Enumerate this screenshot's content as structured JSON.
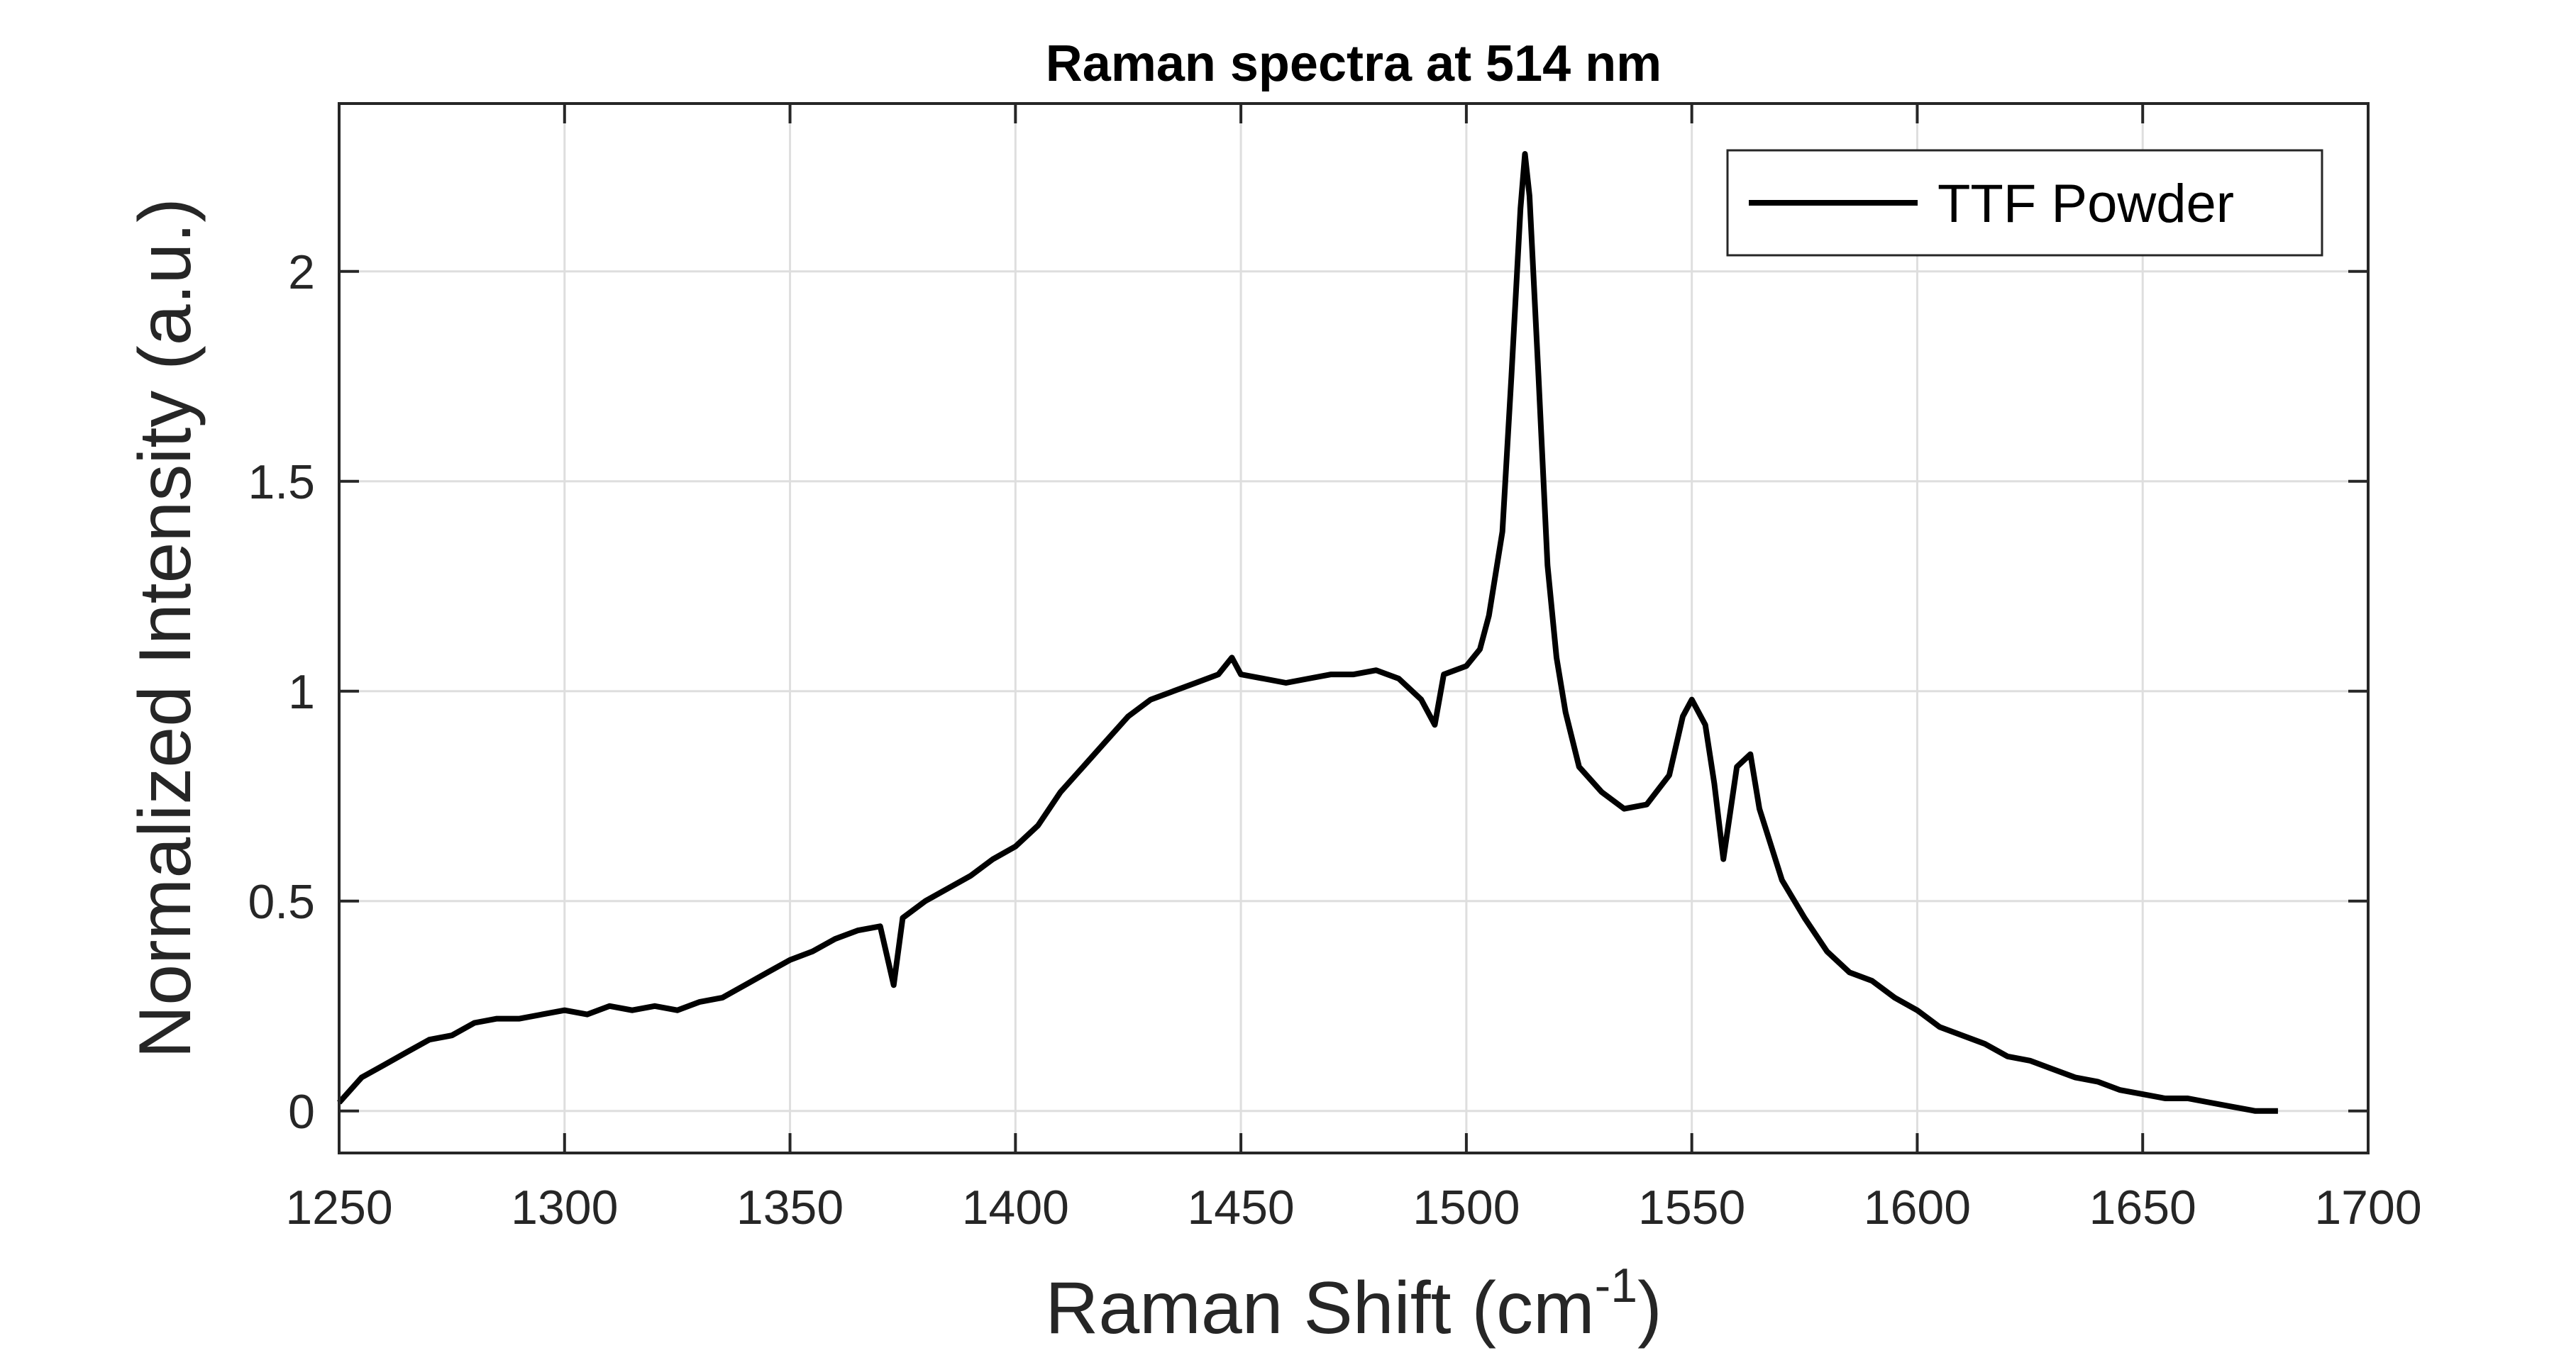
{
  "chart_data": {
    "type": "line",
    "title": "Raman spectra at 514 nm",
    "xlabel": "Raman Shift (cm",
    "xlabel_superscript": "-1",
    "xlabel_suffix": ")",
    "ylabel": "Normalized Intensity (a.u.)",
    "xlim": [
      1250,
      1700
    ],
    "ylim": [
      -0.1,
      2.4
    ],
    "xticks": [
      1250,
      1300,
      1350,
      1400,
      1450,
      1500,
      1550,
      1600,
      1650,
      1700
    ],
    "xtick_labels": [
      "1250",
      "1300",
      "1350",
      "1400",
      "1450",
      "1500",
      "1550",
      "1600",
      "1650",
      "1700"
    ],
    "yticks": [
      0,
      0.5,
      1,
      1.5,
      2
    ],
    "ytick_labels": [
      "0",
      "0.5",
      "1",
      "1.5",
      "2"
    ],
    "grid": true,
    "legend_position": "top-right",
    "series": [
      {
        "name": "TTF Powder",
        "color": "#000000",
        "x": [
          1250,
          1255,
          1260,
          1265,
          1270,
          1275,
          1280,
          1285,
          1290,
          1295,
          1300,
          1305,
          1310,
          1315,
          1320,
          1325,
          1330,
          1335,
          1340,
          1345,
          1350,
          1355,
          1360,
          1365,
          1370,
          1373,
          1375,
          1380,
          1385,
          1390,
          1395,
          1400,
          1405,
          1410,
          1415,
          1420,
          1425,
          1430,
          1435,
          1440,
          1445,
          1448,
          1450,
          1455,
          1460,
          1465,
          1470,
          1475,
          1480,
          1485,
          1490,
          1493,
          1495,
          1500,
          1503,
          1505,
          1508,
          1510,
          1512,
          1513,
          1514,
          1516,
          1518,
          1520,
          1522,
          1525,
          1530,
          1535,
          1540,
          1545,
          1548,
          1550,
          1553,
          1555,
          1557,
          1560,
          1563,
          1565,
          1570,
          1575,
          1580,
          1585,
          1590,
          1595,
          1600,
          1605,
          1610,
          1615,
          1620,
          1625,
          1630,
          1635,
          1640,
          1645,
          1650,
          1655,
          1660,
          1665,
          1670,
          1675,
          1680
        ],
        "y": [
          0.02,
          0.08,
          0.11,
          0.14,
          0.17,
          0.18,
          0.21,
          0.22,
          0.22,
          0.23,
          0.24,
          0.23,
          0.25,
          0.24,
          0.25,
          0.24,
          0.26,
          0.27,
          0.3,
          0.33,
          0.36,
          0.38,
          0.41,
          0.43,
          0.44,
          0.3,
          0.46,
          0.5,
          0.53,
          0.56,
          0.6,
          0.63,
          0.68,
          0.76,
          0.82,
          0.88,
          0.94,
          0.98,
          1.0,
          1.02,
          1.04,
          1.08,
          1.04,
          1.03,
          1.02,
          1.03,
          1.04,
          1.04,
          1.05,
          1.03,
          0.98,
          0.92,
          1.04,
          1.06,
          1.1,
          1.18,
          1.38,
          1.75,
          2.15,
          2.28,
          2.18,
          1.75,
          1.3,
          1.08,
          0.95,
          0.82,
          0.76,
          0.72,
          0.73,
          0.8,
          0.94,
          0.98,
          0.92,
          0.78,
          0.6,
          0.82,
          0.85,
          0.72,
          0.55,
          0.46,
          0.38,
          0.33,
          0.31,
          0.27,
          0.24,
          0.2,
          0.18,
          0.16,
          0.13,
          0.12,
          0.1,
          0.08,
          0.07,
          0.05,
          0.04,
          0.03,
          0.03,
          0.02,
          0.01,
          0.0,
          0.0
        ]
      }
    ]
  }
}
